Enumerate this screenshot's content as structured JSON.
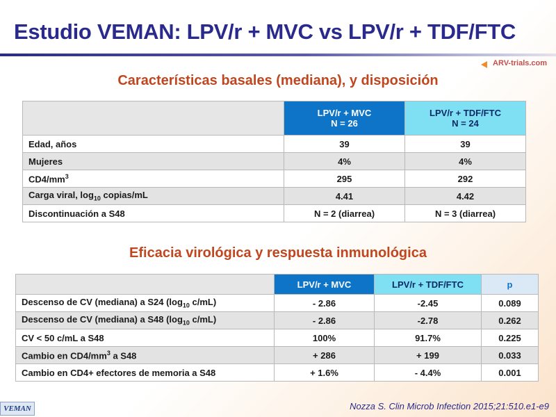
{
  "title": "Estudio VEMAN: LPV/r + MVC vs LPV/r + TDF/FTC",
  "logo": {
    "text": "ARV-trials.com"
  },
  "section1": {
    "title": "Características basales (mediana), y disposición",
    "columns": [
      {
        "line1": "LPV/r + MVC",
        "line2": "N = 26"
      },
      {
        "line1": "LPV/r + TDF/FTC",
        "line2": "N = 24"
      }
    ],
    "rows": [
      {
        "label": "Edad, años",
        "a": "39",
        "b": "39"
      },
      {
        "label": "Mujeres",
        "a": "4%",
        "b": "4%"
      },
      {
        "label_main": "CD4/mm",
        "label_sup": "3",
        "a": "295",
        "b": "292"
      },
      {
        "label_pre": "Carga viral, log",
        "label_sub": "10",
        "label_post": " copias/mL",
        "a": "4.41",
        "b": "4.42"
      },
      {
        "label": "Discontinuación a S48",
        "a": "N = 2 (diarrea)",
        "b": "N = 3 (diarrea)"
      }
    ]
  },
  "section2": {
    "title": "Eficacia virológica y respuesta inmunológica",
    "columns": [
      "LPV/r + MVC",
      "LPV/r + TDF/FTC",
      "p"
    ],
    "rows": [
      {
        "label_pre": "Descenso de CV (mediana) a S24 (log",
        "label_sub": "10",
        "label_post": " c/mL)",
        "a": "- 2.86",
        "b": "-2.45",
        "p": "0.089"
      },
      {
        "label_pre": "Descenso de CV (mediana) a S48 (log",
        "label_sub": "10",
        "label_post": " c/mL)",
        "a": "- 2.86",
        "b": "-2.78",
        "p": "0.262"
      },
      {
        "label": "CV < 50 c/mL a S48",
        "a": "100%",
        "b": "91.7%",
        "p": "0.225"
      },
      {
        "label_pre": "Cambio en CD4/mm",
        "label_sup": "3",
        "label_post": " a S48",
        "a": "+ 286",
        "b": "+ 199",
        "p": "0.033"
      },
      {
        "label": "Cambio en  CD4+ efectores de memoria a S48",
        "a": "+ 1.6%",
        "b": "- 4.4%",
        "p": "0.001"
      }
    ]
  },
  "footer": {
    "tag": "VEMAN",
    "citation": "Nozza S. Clin Microb Infection 2015;21:510.e1-e9"
  }
}
